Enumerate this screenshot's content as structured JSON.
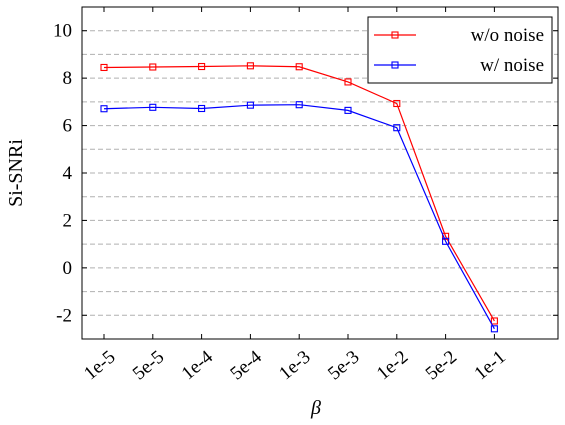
{
  "chart_data": {
    "type": "line",
    "categories": [
      "1e-5",
      "5e-5",
      "1e-4",
      "5e-4",
      "1e-3",
      "5e-3",
      "1e-2",
      "5e-2",
      "1e-1"
    ],
    "series": [
      {
        "name": "w/o noise",
        "color": "#ff0000",
        "values": [
          8.45,
          8.47,
          8.49,
          8.52,
          8.48,
          7.84,
          6.93,
          1.33,
          -2.24
        ]
      },
      {
        "name": "w/ noise",
        "color": "#0000ff",
        "values": [
          6.71,
          6.77,
          6.72,
          6.86,
          6.88,
          6.64,
          5.91,
          1.12,
          -2.57
        ]
      }
    ],
    "xlabel": "β",
    "ylabel": "Si-SNRi",
    "ylim": [
      -3,
      11
    ],
    "yticks": [
      -2,
      0,
      2,
      4,
      6,
      8,
      10
    ],
    "grid": "horizontal dashed",
    "legend_position": "top-right",
    "marker": "square"
  }
}
